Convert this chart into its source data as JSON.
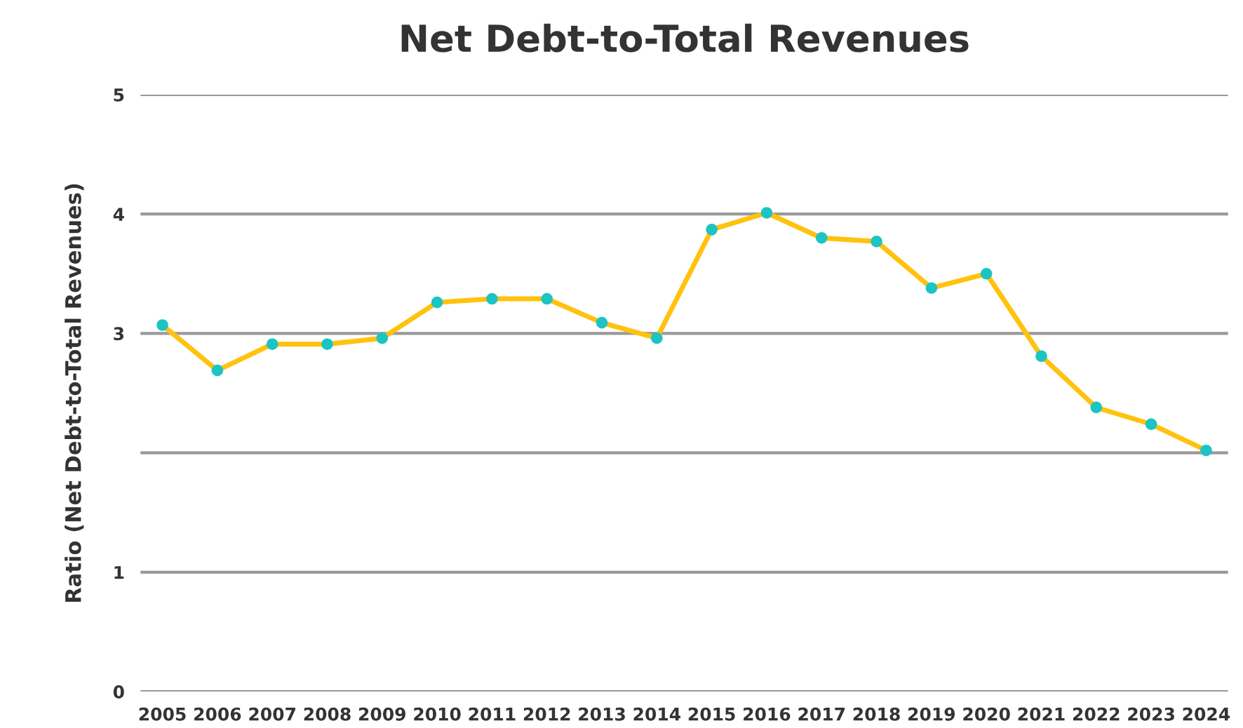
{
  "chart_data": {
    "type": "line",
    "title": "Net Debt-to-Total Revenues",
    "ylabel": "Ratio (Net Debt-to-Total Revenues)",
    "categories": [
      "2005",
      "2006",
      "2007",
      "2008",
      "2009",
      "2010",
      "2011",
      "2012",
      "2013",
      "2014",
      "2015",
      "2016",
      "2017",
      "2018",
      "2019",
      "2020",
      "2021",
      "2022",
      "2023",
      "2024"
    ],
    "series": [
      {
        "color": "#ffc20e",
        "values": [
          3.07,
          2.69,
          2.91,
          2.91,
          2.96,
          3.26,
          3.29,
          3.29,
          3.09,
          2.96,
          3.87,
          4.01,
          3.8,
          3.77,
          3.38,
          3.5,
          2.81,
          2.38,
          2.24,
          2.02
        ]
      }
    ],
    "ylim": [
      0,
      5
    ],
    "yticks": [
      0,
      1,
      {
        "value": 2,
        "label": null
      },
      3,
      4,
      5
    ],
    "grid": "y",
    "marker": "circle",
    "line_style": "solid",
    "legend": false
  }
}
